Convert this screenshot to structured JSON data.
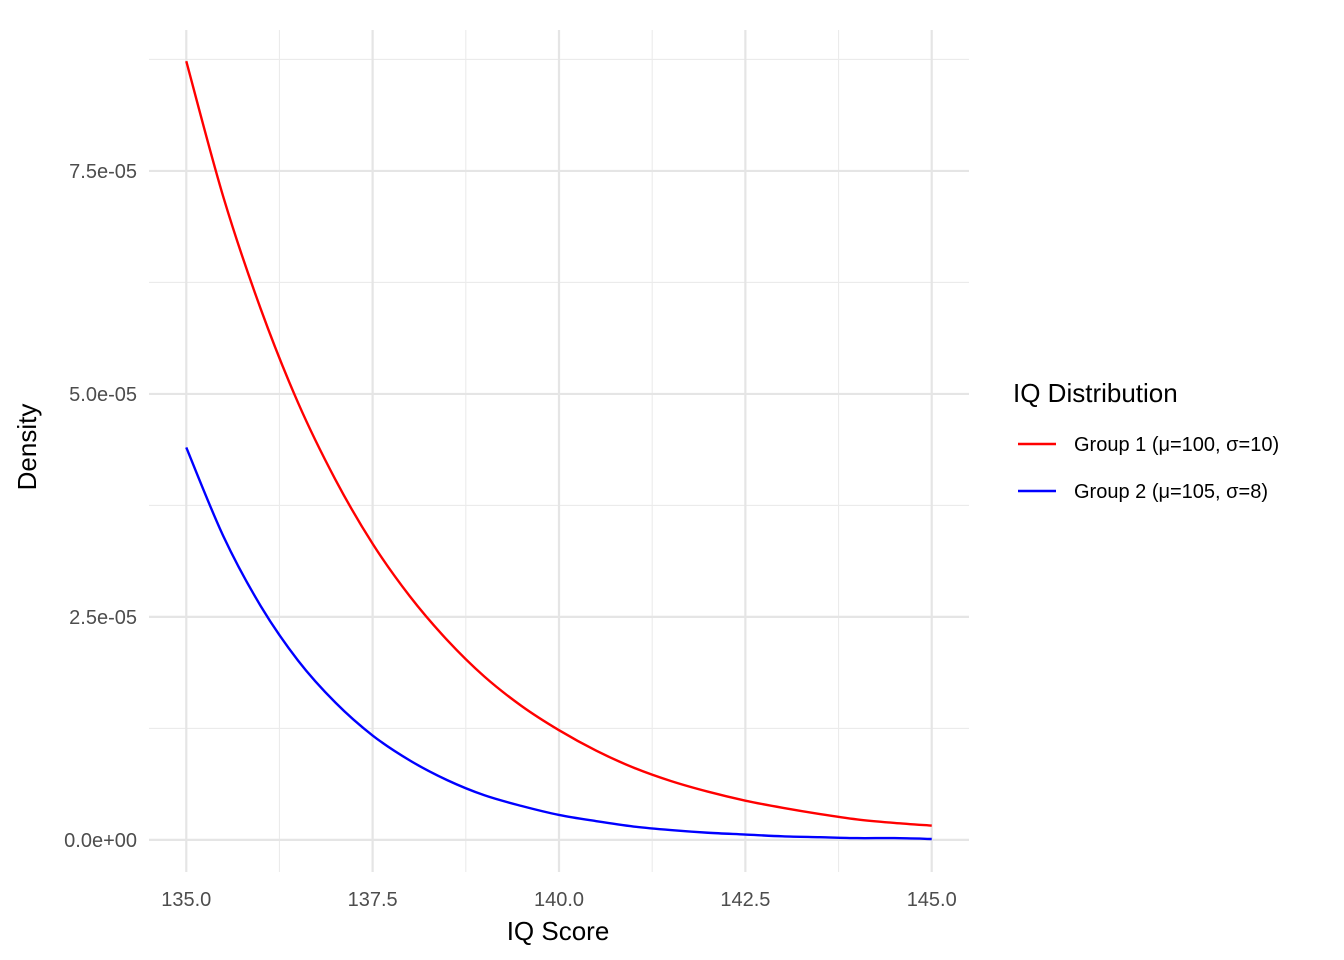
{
  "chart_data": {
    "type": "line",
    "xlabel": "IQ Score",
    "ylabel": "Density",
    "xlim": [
      134.5,
      145.5
    ],
    "ylim": [
      -3.6e-06,
      9.08e-05
    ],
    "x_ticks": [
      135.0,
      137.5,
      140.0,
      142.5,
      145.0
    ],
    "x_tick_labels": [
      "135.0",
      "137.5",
      "140.0",
      "142.5",
      "145.0"
    ],
    "y_ticks": [
      0,
      2.5e-05,
      5e-05,
      7.5e-05
    ],
    "y_tick_labels": [
      "0.0e+00",
      "2.5e-05",
      "5.0e-05",
      "7.5e-05"
    ],
    "grid": true,
    "legend": {
      "title": "IQ Distribution",
      "position": "right"
    },
    "series": [
      {
        "name": "Group 1 (μ=100, σ=10)",
        "color": "#ff0000",
        "x": [
          135.0,
          135.5,
          136.0,
          136.5,
          137.0,
          137.5,
          138.0,
          138.5,
          139.0,
          139.5,
          140.0,
          140.5,
          141.0,
          141.5,
          142.0,
          142.5,
          143.0,
          143.5,
          144.0,
          144.5,
          145.0
        ],
        "values": [
          8.73e-05,
          7.2e-05,
          5.95e-05,
          4.9e-05,
          4.04e-05,
          3.32e-05,
          2.73e-05,
          2.24e-05,
          1.83e-05,
          1.5e-05,
          1.23e-05,
          1e-05,
          8.1e-06,
          6.6e-06,
          5.4e-06,
          4.4e-06,
          3.6e-06,
          2.9e-06,
          2.3e-06,
          1.9e-06,
          1.6e-06
        ]
      },
      {
        "name": "Group 2 (μ=105, σ=8)",
        "color": "#0000ff",
        "x": [
          135.0,
          135.5,
          136.0,
          136.5,
          137.0,
          137.5,
          138.0,
          138.5,
          139.0,
          139.5,
          140.0,
          140.5,
          141.0,
          141.5,
          142.0,
          142.5,
          143.0,
          143.5,
          144.0,
          144.5,
          145.0
        ],
        "values": [
          4.4e-05,
          3.4e-05,
          2.62e-05,
          2.01e-05,
          1.54e-05,
          1.17e-05,
          8.9e-06,
          6.7e-06,
          5e-06,
          3.8e-06,
          2.8e-06,
          2.1e-06,
          1.5e-06,
          1.1e-06,
          8e-07,
          6e-07,
          4e-07,
          3e-07,
          2e-07,
          2e-07,
          1e-07
        ]
      }
    ]
  }
}
